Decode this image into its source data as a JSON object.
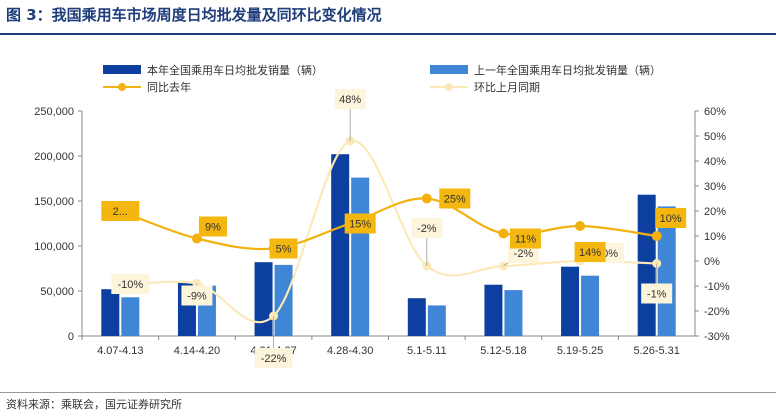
{
  "title": "图 3：我国乘用车市场周度日均批发量及同环比变化情况",
  "source": "资料来源：乘联会，国元证券研究所",
  "colors": {
    "current_bar": "#0d3fa0",
    "prev_bar": "#3f86d6",
    "yoy_line": "#f2b10e",
    "mom_line": "#fbe9b8",
    "yoy_label_bg": "#f4b70f",
    "mom_label_bg": "#fdf4dc"
  },
  "chart_data": {
    "type": "bar",
    "categories": [
      "4.07-4.13",
      "4.14-4.20",
      "4.21-4.27",
      "4.28-4.30",
      "5.1-5.11",
      "5.12-5.18",
      "5.19-5.25",
      "5.26-5.31"
    ],
    "series": [
      {
        "name": "本年全国乘用车日均批发销量（辆）",
        "type": "bar",
        "axis": "left",
        "values": [
          52000,
          59000,
          82000,
          202000,
          42000,
          57000,
          77000,
          157000
        ]
      },
      {
        "name": "上一年全国乘用车日均批发销量（辆）",
        "type": "bar",
        "axis": "left",
        "values": [
          43000,
          56000,
          79000,
          176000,
          34000,
          51000,
          67000,
          144000
        ]
      },
      {
        "name": "同比去年",
        "type": "line",
        "axis": "right",
        "values": [
          20,
          9,
          5,
          15,
          25,
          11,
          14,
          10
        ],
        "labels": [
          "2...",
          "9%",
          "5%",
          "15%",
          "25%",
          "11%",
          "14%",
          "10%"
        ]
      },
      {
        "name": "环比上月同期",
        "type": "line",
        "axis": "right",
        "values": [
          -10,
          -9,
          -22,
          48,
          -2,
          -2,
          0,
          -1
        ],
        "labels": [
          "-10%",
          "-9%",
          "-22%",
          "48%",
          "-2%",
          "-2%",
          "0%",
          "-1%"
        ]
      }
    ],
    "y_left": {
      "min": 0,
      "max": 250000,
      "ticks": [
        "0",
        "50,000",
        "100,000",
        "150,000",
        "200,000",
        "250,000"
      ]
    },
    "y_right": {
      "min": -30,
      "max": 60,
      "ticks": [
        "-30%",
        "-20%",
        "-10%",
        "0%",
        "10%",
        "20%",
        "30%",
        "40%",
        "50%",
        "60%"
      ]
    },
    "legend_position": "top",
    "grid": false
  }
}
